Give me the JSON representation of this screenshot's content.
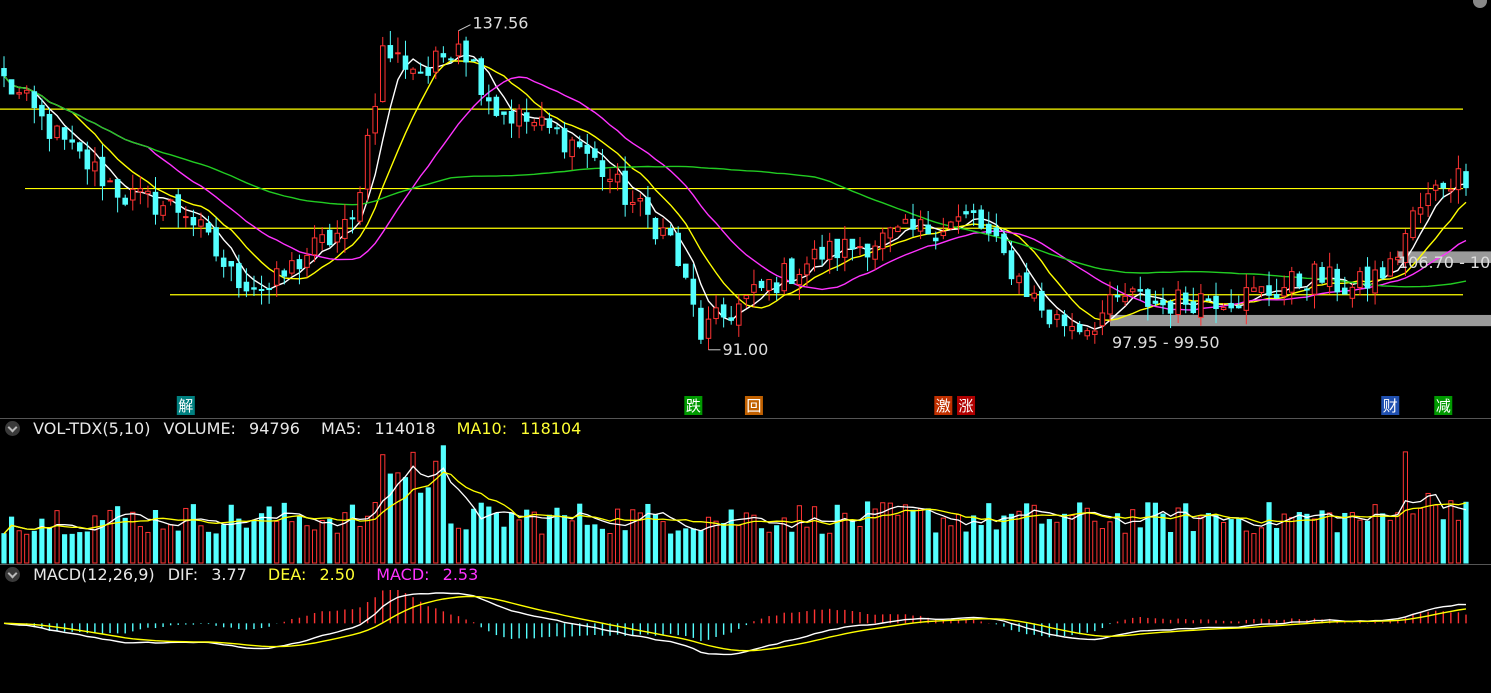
{
  "chart_data": {
    "type": "candlestick",
    "colors": {
      "up": "#ff3333",
      "down": "#54ffff",
      "ma_white": "#ffffff",
      "ma_yellow": "#ffff00",
      "ma_magenta": "#ff33ff",
      "ma_green": "#22cc22",
      "level_line": "#ffff00",
      "band": "#9a9a9a"
    },
    "price_ylim": [
      88,
      142
    ],
    "price_axis_visible": false,
    "annotations": {
      "high_label": "137.56",
      "low_label": "91.00",
      "zone_1_label": "97.95 - 99.50",
      "zone_2_label": "106.70 - 10"
    },
    "level_lines": [
      128,
      117,
      111.5,
      102.3
    ],
    "zones": [
      {
        "low": 97.95,
        "high": 99.5,
        "start_index": 146
      },
      {
        "low": 106.7,
        "high": 108.3,
        "start_index": 184
      }
    ],
    "event_markers": [
      {
        "index": 24,
        "text": "解",
        "bg": "#008080"
      },
      {
        "index": 91,
        "text": "跌",
        "bg": "#009900"
      },
      {
        "index": 99,
        "text": "回",
        "bg": "#c06000"
      },
      {
        "index": 124,
        "text": "激",
        "bg": "#c03000"
      },
      {
        "index": 127,
        "text": "涨",
        "bg": "#b00000"
      },
      {
        "index": 183,
        "text": "财",
        "bg": "#2050b0"
      },
      {
        "index": 190,
        "text": "减",
        "bg": "#009900"
      }
    ],
    "price_points": [
      [
        0,
        132
      ],
      [
        8,
        123
      ],
      [
        16,
        116
      ],
      [
        24,
        114
      ],
      [
        30,
        105
      ],
      [
        35,
        103
      ],
      [
        40,
        108
      ],
      [
        46,
        112
      ],
      [
        50,
        136
      ],
      [
        56,
        133
      ],
      [
        60,
        138
      ],
      [
        65,
        128
      ],
      [
        70,
        126
      ],
      [
        76,
        123
      ],
      [
        82,
        116
      ],
      [
        88,
        110
      ],
      [
        92,
        97
      ],
      [
        96,
        100
      ],
      [
        100,
        103
      ],
      [
        108,
        108
      ],
      [
        116,
        110
      ],
      [
        124,
        112
      ],
      [
        128,
        113
      ],
      [
        133,
        106
      ],
      [
        138,
        99
      ],
      [
        143,
        98
      ],
      [
        148,
        102
      ],
      [
        153,
        101
      ],
      [
        158,
        102
      ],
      [
        163,
        102
      ],
      [
        168,
        103
      ],
      [
        173,
        105
      ],
      [
        178,
        103
      ],
      [
        183,
        106
      ],
      [
        186,
        113
      ],
      [
        190,
        118
      ],
      [
        193,
        119
      ]
    ],
    "volume_panel": {
      "indicator": "VOL-TDX(5,10)",
      "volume_label": "VOLUME:",
      "volume": "94796",
      "ma5_label": "MA5:",
      "ma5": "114018",
      "ma10_label": "MA10:",
      "ma10": "118104",
      "ylim": [
        0,
        120000
      ]
    },
    "macd_panel": {
      "indicator": "MACD(12,26,9)",
      "dif_label": "DIF:",
      "dif": "3.77",
      "dea_label": "DEA:",
      "dea": "2.50",
      "macd_label": "MACD:",
      "macd": "2.53",
      "ylim": [
        -14,
        7
      ]
    },
    "candle_count": 194,
    "grid": false,
    "legend": "none"
  }
}
